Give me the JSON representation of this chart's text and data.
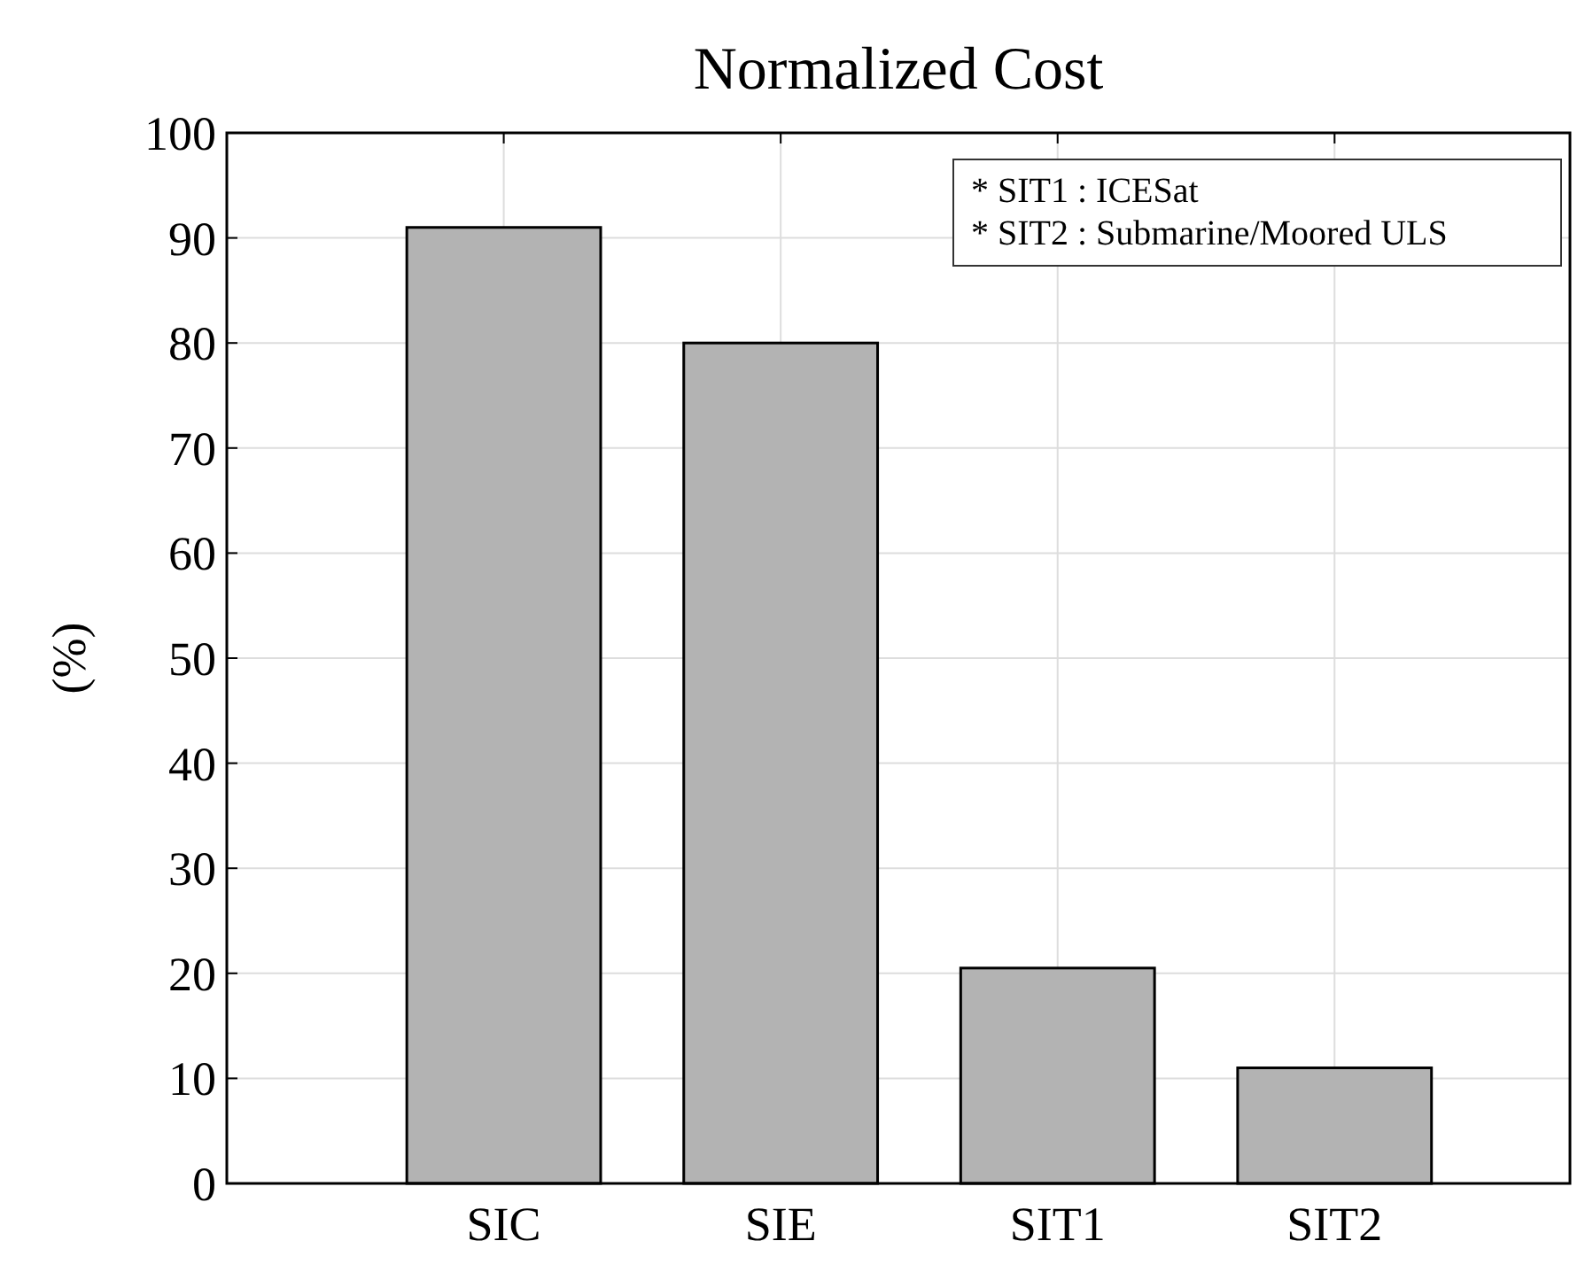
{
  "chart_data": {
    "type": "bar",
    "title": "Normalized Cost",
    "ylabel": "(%)",
    "categories": [
      "SIC",
      "SIE",
      "SIT1",
      "SIT2"
    ],
    "values": [
      91,
      80,
      20.5,
      11
    ],
    "color": "#b3b3b3",
    "ylim": [
      0,
      100
    ],
    "yticks": [
      0,
      10,
      20,
      30,
      40,
      50,
      60,
      70,
      80,
      90,
      100
    ],
    "grid": true,
    "annotations": [
      "* SIT1 : ICESat",
      "* SIT2 : Submarine/Moored ULS"
    ]
  }
}
